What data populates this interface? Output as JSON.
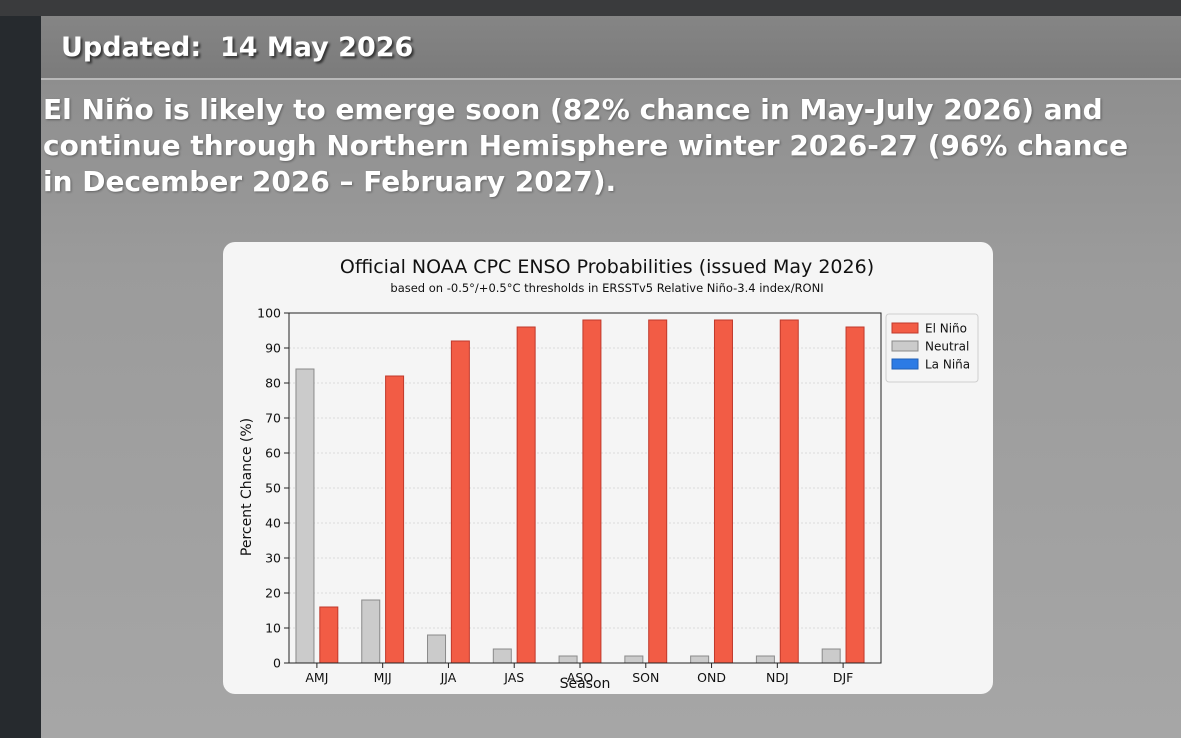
{
  "header": {
    "updated_text": "Updated:  14 May 2026"
  },
  "headline": "El Niño is likely to emerge soon (82% chance in May-July 2026) and continue through Northern Hemisphere winter 2026-27 (96% chance in December 2026 – February 2027).",
  "chart_data": {
    "type": "bar",
    "title": "Official NOAA CPC ENSO Probabilities (issued May 2026)",
    "subtitle": "based on -0.5°/+0.5°C thresholds in ERSSTv5 Relative Niño-3.4 index/RONI",
    "xlabel": "Season",
    "ylabel": "Percent Chance (%)",
    "ylim": [
      0,
      100
    ],
    "yticks": [
      0,
      10,
      20,
      30,
      40,
      50,
      60,
      70,
      80,
      90,
      100
    ],
    "grid": true,
    "legend_position": "top-right-outside",
    "categories": [
      "AMJ",
      "MJJ",
      "JJA",
      "JAS",
      "ASO",
      "SON",
      "OND",
      "NDJ",
      "DJF"
    ],
    "series": [
      {
        "name": "La Niña",
        "color": "#2c7be5",
        "values": [
          0,
          0,
          0,
          0,
          0,
          0,
          0,
          0,
          0
        ]
      },
      {
        "name": "Neutral",
        "color": "#cbcbcb",
        "values": [
          84,
          18,
          8,
          4,
          2,
          2,
          2,
          2,
          4
        ]
      },
      {
        "name": "El Niño",
        "color": "#f25c45",
        "values": [
          16,
          82,
          92,
          96,
          98,
          98,
          98,
          98,
          96
        ]
      }
    ],
    "legend_order": [
      "El Niño",
      "Neutral",
      "La Niña"
    ]
  }
}
